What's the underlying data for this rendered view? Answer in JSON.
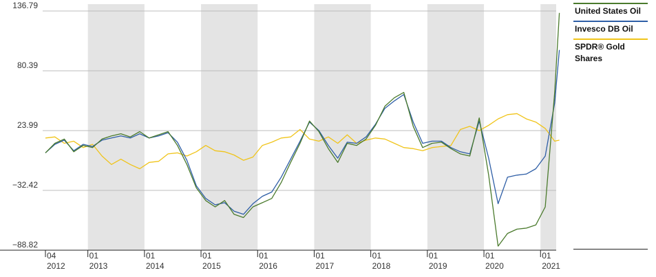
{
  "chart_data": {
    "type": "line",
    "y_ticks": [
      "136.79",
      "80.39",
      "23.99",
      "−32.42",
      "−88.82"
    ],
    "y_tick_values": [
      136.79,
      80.39,
      23.99,
      -32.42,
      -88.82
    ],
    "ylim": [
      -88.82,
      136.79
    ],
    "x_tick_months": [
      "04",
      "01",
      "01",
      "01",
      "01",
      "01",
      "01",
      "01",
      "01",
      "01"
    ],
    "x_tick_years": [
      "2012",
      "2013",
      "2014",
      "2015",
      "2016",
      "2017",
      "2018",
      "2019",
      "2020",
      "2021"
    ],
    "start": "2012-04",
    "end": "2021-05",
    "shaded_years": [
      "2013",
      "2015",
      "2017",
      "2019",
      "2021"
    ],
    "grid": true,
    "legend_position": "right",
    "series": [
      {
        "name": "United States Oil",
        "color": "#4a7a2c",
        "x": [
          "2012-04",
          "2012-06",
          "2012-08",
          "2012-10",
          "2012-12",
          "2013-02",
          "2013-04",
          "2013-06",
          "2013-08",
          "2013-10",
          "2013-12",
          "2014-02",
          "2014-04",
          "2014-06",
          "2014-08",
          "2014-10",
          "2014-12",
          "2015-02",
          "2015-04",
          "2015-06",
          "2015-08",
          "2015-10",
          "2015-12",
          "2016-02",
          "2016-04",
          "2016-06",
          "2016-08",
          "2016-10",
          "2016-12",
          "2017-02",
          "2017-04",
          "2017-06",
          "2017-08",
          "2017-10",
          "2017-12",
          "2018-02",
          "2018-04",
          "2018-06",
          "2018-08",
          "2018-10",
          "2018-12",
          "2019-02",
          "2019-04",
          "2019-06",
          "2019-08",
          "2019-10",
          "2019-12",
          "2020-02",
          "2020-04",
          "2020-06",
          "2020-08",
          "2020-10",
          "2020-12",
          "2021-02",
          "2021-04",
          "2021-05"
        ],
        "values": [
          3,
          12,
          16,
          4,
          10,
          8,
          16,
          19,
          21,
          18,
          23,
          17,
          20,
          23,
          10,
          -8,
          -30,
          -42,
          -48,
          -42,
          -55,
          -58,
          -48,
          -44,
          -40,
          -25,
          -6,
          12,
          33,
          23,
          7,
          -6,
          12,
          10,
          16,
          29,
          47,
          55,
          60,
          28,
          8,
          12,
          13,
          7,
          2,
          0,
          36,
          -18,
          -85,
          -73,
          -69,
          -68,
          -65,
          -48,
          60,
          135
        ]
      },
      {
        "name": "Invesco DB Oil",
        "color": "#2e5ea6",
        "x": [
          "2012-04",
          "2012-06",
          "2012-08",
          "2012-10",
          "2012-12",
          "2013-02",
          "2013-04",
          "2013-06",
          "2013-08",
          "2013-10",
          "2013-12",
          "2014-02",
          "2014-04",
          "2014-06",
          "2014-08",
          "2014-10",
          "2014-12",
          "2015-02",
          "2015-04",
          "2015-06",
          "2015-08",
          "2015-10",
          "2015-12",
          "2016-02",
          "2016-04",
          "2016-06",
          "2016-08",
          "2016-10",
          "2016-12",
          "2017-02",
          "2017-04",
          "2017-06",
          "2017-08",
          "2017-10",
          "2017-12",
          "2018-02",
          "2018-04",
          "2018-06",
          "2018-08",
          "2018-10",
          "2018-12",
          "2019-02",
          "2019-04",
          "2019-06",
          "2019-08",
          "2019-10",
          "2019-12",
          "2020-02",
          "2020-04",
          "2020-06",
          "2020-08",
          "2020-10",
          "2020-12",
          "2021-02",
          "2021-04",
          "2021-05"
        ],
        "values": [
          3,
          11,
          15,
          5,
          11,
          9,
          15,
          17,
          19,
          17,
          21,
          17,
          19,
          22,
          13,
          -4,
          -28,
          -40,
          -46,
          -44,
          -52,
          -55,
          -45,
          -38,
          -34,
          -20,
          -3,
          14,
          32,
          24,
          10,
          -2,
          13,
          12,
          18,
          30,
          45,
          52,
          58,
          32,
          12,
          14,
          14,
          8,
          4,
          2,
          33,
          -2,
          -45,
          -20,
          -18,
          -17,
          -12,
          0,
          50,
          100
        ]
      },
      {
        "name": "SPDR® Gold Shares",
        "color": "#f0c419",
        "x": [
          "2012-04",
          "2012-06",
          "2012-08",
          "2012-10",
          "2012-12",
          "2013-02",
          "2013-04",
          "2013-06",
          "2013-08",
          "2013-10",
          "2013-12",
          "2014-02",
          "2014-04",
          "2014-06",
          "2014-08",
          "2014-10",
          "2014-12",
          "2015-02",
          "2015-04",
          "2015-06",
          "2015-08",
          "2015-10",
          "2015-12",
          "2016-02",
          "2016-04",
          "2016-06",
          "2016-08",
          "2016-10",
          "2016-12",
          "2017-02",
          "2017-04",
          "2017-06",
          "2017-08",
          "2017-10",
          "2017-12",
          "2018-02",
          "2018-04",
          "2018-06",
          "2018-08",
          "2018-10",
          "2018-12",
          "2019-02",
          "2019-04",
          "2019-06",
          "2019-08",
          "2019-10",
          "2019-12",
          "2020-02",
          "2020-04",
          "2020-06",
          "2020-08",
          "2020-10",
          "2020-12",
          "2021-02",
          "2021-04",
          "2021-05"
        ],
        "values": [
          17,
          18,
          12,
          14,
          8,
          11,
          0,
          -8,
          -3,
          -8,
          -12,
          -6,
          -5,
          2,
          3,
          0,
          4,
          10,
          5,
          4,
          1,
          -4,
          -1,
          10,
          13,
          17,
          18,
          25,
          16,
          14,
          18,
          12,
          20,
          12,
          15,
          17,
          16,
          12,
          8,
          7,
          5,
          8,
          9,
          10,
          25,
          28,
          24,
          29,
          35,
          39,
          40,
          35,
          32,
          26,
          14,
          15
        ]
      }
    ]
  }
}
